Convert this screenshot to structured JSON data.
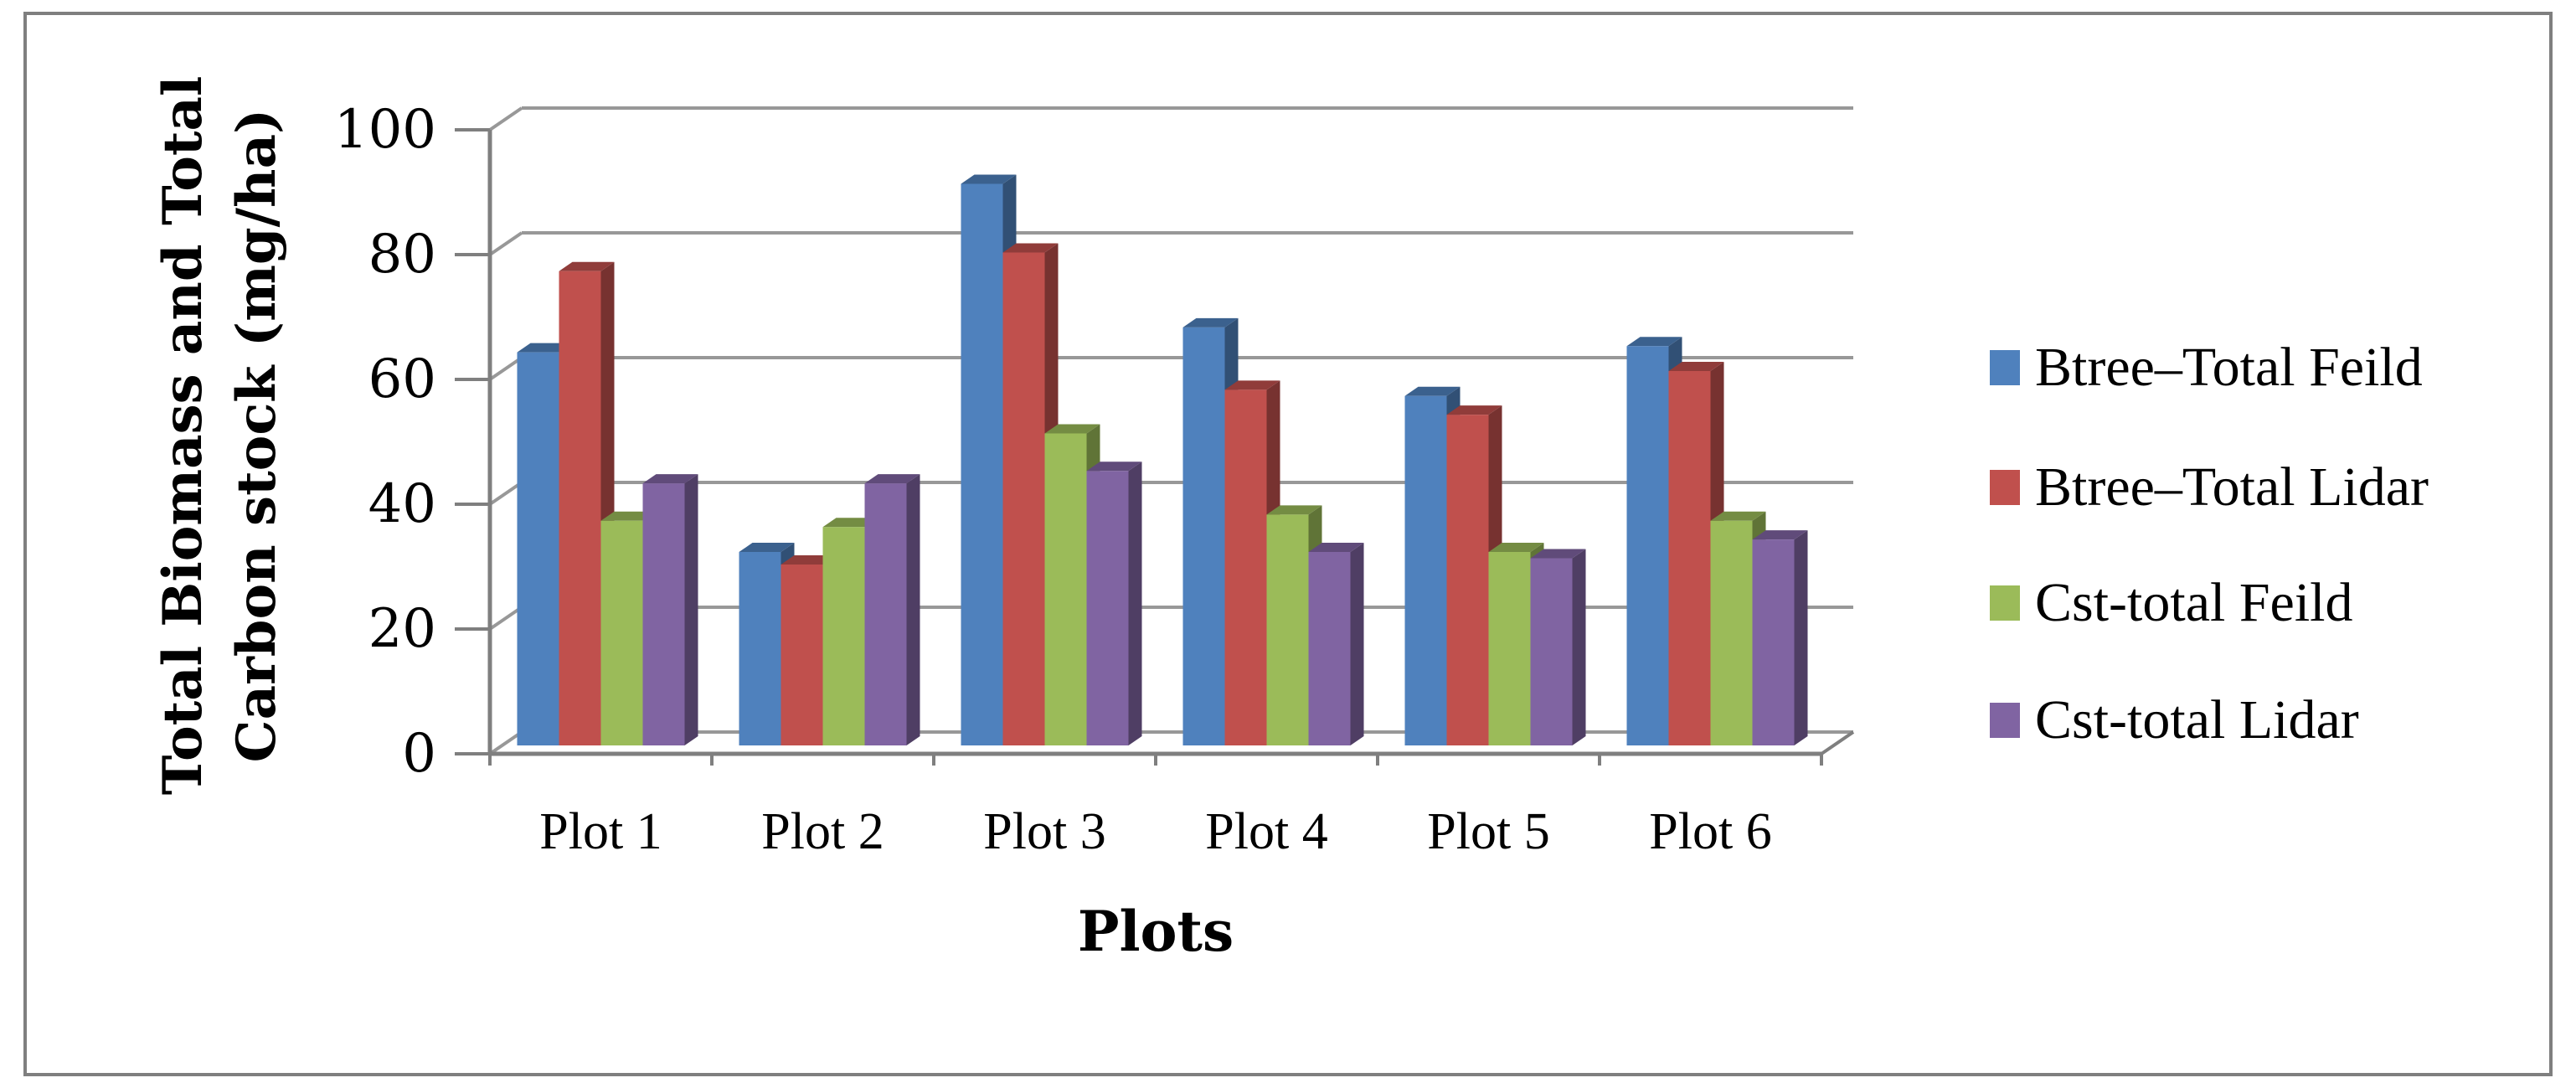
{
  "chart_data": {
    "type": "bar",
    "variant": "3d-clustered-column",
    "title": "",
    "categories": [
      "Plot 1",
      "Plot 2",
      "Plot 3",
      "Plot 4",
      "Plot 5",
      "Plot 6"
    ],
    "series": [
      {
        "name": "Btree–Total Feild",
        "color": "#4F81BD",
        "values": [
          63,
          31,
          90,
          67,
          56,
          64
        ]
      },
      {
        "name": "Btree–Total Lidar",
        "color": "#C0504D",
        "values": [
          76,
          29,
          79,
          57,
          53,
          60
        ]
      },
      {
        "name": "Cst-total Feild",
        "color": "#9BBB59",
        "values": [
          36,
          35,
          50,
          37,
          31,
          36
        ]
      },
      {
        "name": "Cst-total Lidar",
        "color": "#8064A2",
        "values": [
          42,
          42,
          44,
          31,
          30,
          33
        ]
      }
    ],
    "xlabel": "Plots",
    "ylabel_line1": "Total Biomass and Total",
    "ylabel_line2": "Carbon stock (mg/ha)",
    "ylim": [
      0,
      100
    ],
    "yticks": [
      0,
      20,
      40,
      60,
      80,
      100
    ],
    "grid": true,
    "legend_position": "right",
    "colors": {
      "gridline": "#989898",
      "axis": "#7f7f7f",
      "frame": "#7f7f7f",
      "text": "#000000"
    }
  }
}
